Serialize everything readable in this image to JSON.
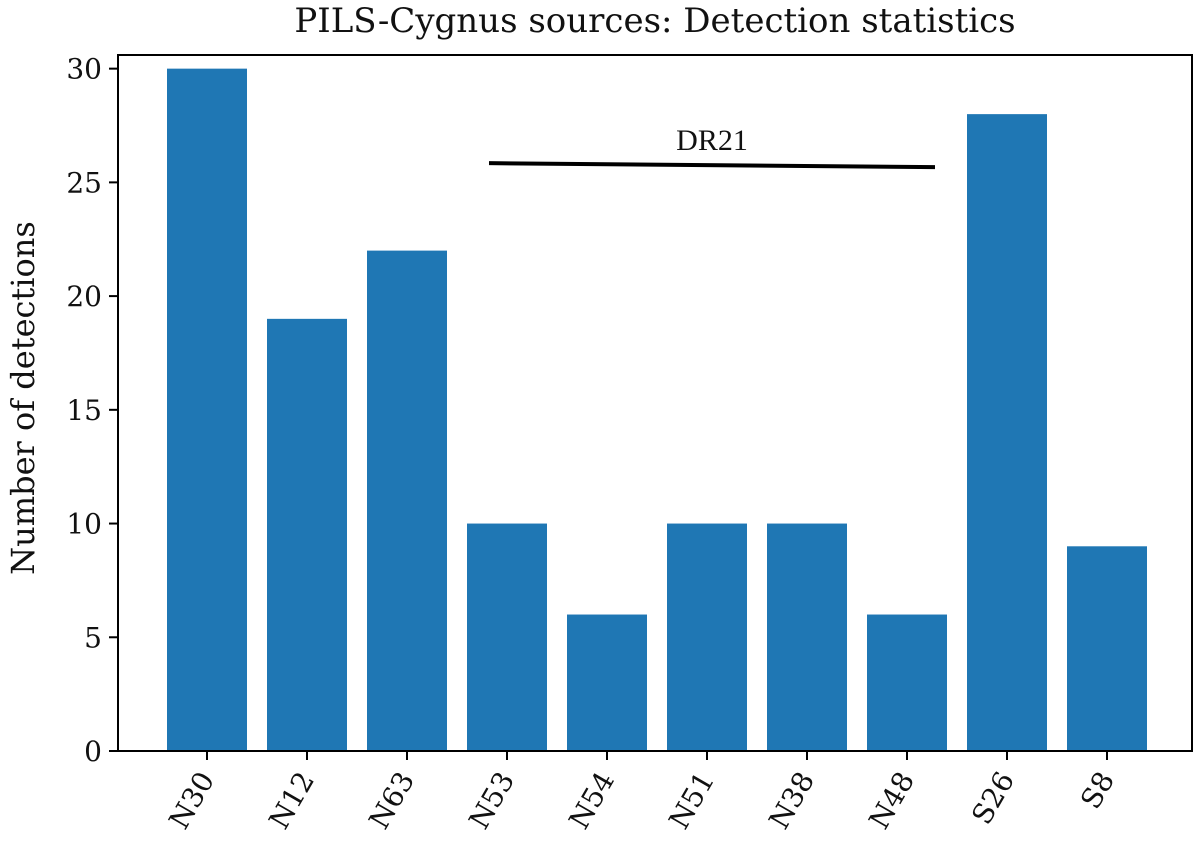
{
  "chart_data": {
    "type": "bar",
    "title": "PILS-Cygnus sources: Detection statistics",
    "xlabel": "",
    "ylabel": "Number of detections",
    "categories": [
      "N30",
      "N12",
      "N63",
      "N53",
      "N54",
      "N51",
      "N38",
      "N48",
      "S26",
      "S8"
    ],
    "values": [
      30,
      19,
      22,
      10,
      6,
      10,
      10,
      6,
      28,
      9
    ],
    "ylim": [
      0,
      30.6
    ],
    "yticks": [
      0,
      5,
      10,
      15,
      20,
      25,
      30
    ],
    "bar_color": "#1f77b4",
    "grid": false,
    "legend": "none",
    "annotations": [
      {
        "text": "DR21",
        "from_category": "N53",
        "to_category": "N48",
        "y": 25.8
      }
    ]
  }
}
